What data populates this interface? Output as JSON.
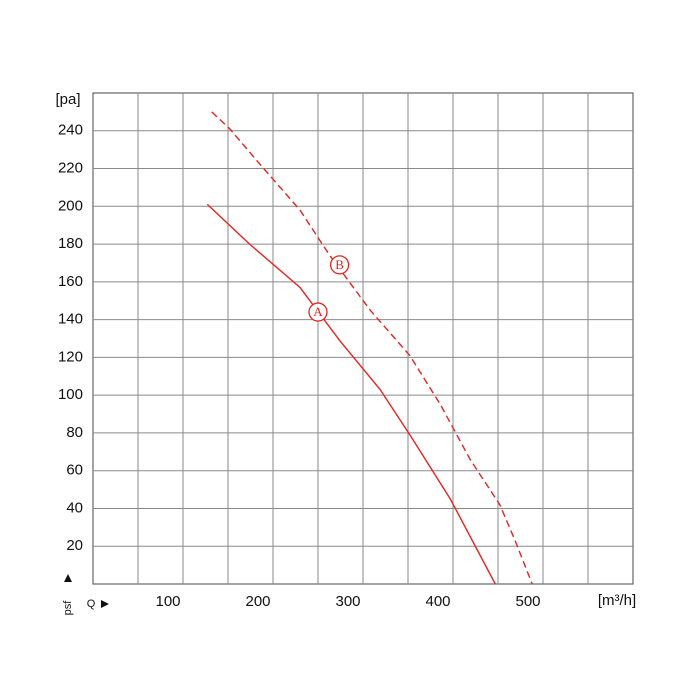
{
  "chart_data": {
    "type": "line",
    "y_label": "[pa]",
    "x_label": "[m³/h]",
    "y_alt_label": "psf",
    "x_symbol": "Q",
    "xlim": [
      0,
      600
    ],
    "xticks": [
      100,
      200,
      300,
      400,
      500
    ],
    "x_minor_ticks": [
      50,
      150,
      250,
      350,
      450,
      550
    ],
    "ylim": [
      0,
      260
    ],
    "yticks": [
      20,
      40,
      60,
      80,
      100,
      120,
      140,
      160,
      180,
      200,
      220,
      240
    ],
    "grid": true,
    "series": [
      {
        "name": "A",
        "color": "#e8231f",
        "style": "solid",
        "label_at": [
          250,
          144
        ],
        "x": [
          127,
          174,
          230,
          274,
          319,
          352,
          397,
          447
        ],
        "values": [
          201,
          180,
          157,
          129,
          103,
          79,
          45,
          0
        ]
      },
      {
        "name": "B",
        "color": "#e8231f",
        "style": "dashed",
        "label_at": [
          274,
          169
        ],
        "x": [
          132,
          152,
          186,
          230,
          263,
          308,
          352,
          386,
          419,
          452,
          469,
          488
        ],
        "values": [
          250,
          241,
          222,
          198,
          174,
          145,
          121,
          95,
          66,
          42,
          23,
          0
        ]
      }
    ]
  }
}
